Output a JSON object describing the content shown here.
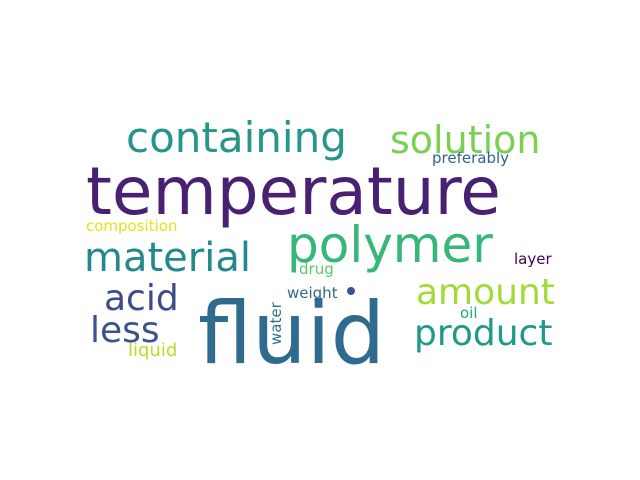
{
  "word_cloud": {
    "background": "#ffffff",
    "words": [
      {
        "text": "temperature",
        "color": "#482173"
      },
      {
        "text": "fluid",
        "color": "#2f6b8e"
      },
      {
        "text": "polymer",
        "color": "#35b779"
      },
      {
        "text": "containing",
        "color": "#26968b"
      },
      {
        "text": "solution",
        "color": "#7ad151"
      },
      {
        "text": "material",
        "color": "#23898e"
      },
      {
        "text": "amount",
        "color": "#a2da37"
      },
      {
        "text": "product",
        "color": "#1f9a8a"
      },
      {
        "text": "acid",
        "color": "#3e4a89"
      },
      {
        "text": "less",
        "color": "#3b528b"
      },
      {
        "text": "preferably",
        "color": "#355f8d"
      },
      {
        "text": "composition",
        "color": "#e2e418"
      },
      {
        "text": "layer",
        "color": "#440154"
      },
      {
        "text": "drug",
        "color": "#5ec962"
      },
      {
        "text": "weight",
        "color": "#31688e"
      },
      {
        "text": "water",
        "color": "#2a768e"
      },
      {
        "text": "oil",
        "color": "#22a884"
      },
      {
        "text": "liquid",
        "color": "#b5de2b"
      },
      {
        "text": "dot",
        "color": "#3b528b"
      }
    ]
  }
}
